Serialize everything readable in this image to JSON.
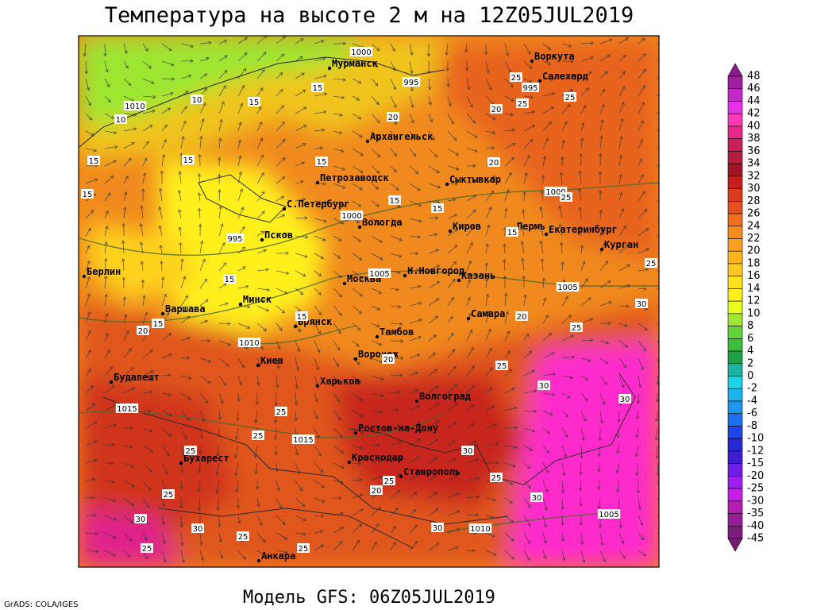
{
  "header": {
    "title": "Температура на высоте 2 м на 12Z05JUL2019"
  },
  "map": {
    "cities": [
      "Мурманск",
      "Воркута",
      "Салехард",
      "Архангельск",
      "Сыктывкар",
      "Петрозаводск",
      "С.Петербург",
      "Вологда",
      "Киров",
      "Пермь",
      "Екатеринбург",
      "Курган",
      "Псков",
      "Берлин",
      "Москва",
      "Н.Новгород",
      "Казань",
      "Варшава",
      "Минск",
      "Брянск",
      "Самара",
      "Тамбов",
      "Киев",
      "Воронеж",
      "Будапешт",
      "Харьков",
      "Волгоград",
      "Ростов-на-Дону",
      "Бухарест",
      "Краснодар",
      "Ставрополь",
      "Анкара"
    ],
    "contour_labels": [
      1000,
      995,
      995,
      1010,
      10,
      10,
      15,
      15,
      20,
      20,
      25,
      25,
      25,
      15,
      15,
      15,
      20,
      1000,
      25,
      15,
      15,
      15,
      1000,
      995,
      15,
      25,
      1005,
      1005,
      15,
      30,
      20,
      15,
      15,
      20,
      25,
      1010,
      20,
      25,
      30,
      30,
      1015,
      25,
      25,
      1015,
      30,
      25,
      25,
      20,
      25,
      25,
      30,
      1005,
      1010,
      30,
      30,
      25,
      30,
      25,
      25
    ]
  },
  "colorbar": {
    "levels": [
      48,
      46,
      44,
      42,
      40,
      38,
      36,
      34,
      32,
      30,
      28,
      26,
      24,
      22,
      20,
      18,
      16,
      14,
      12,
      10,
      8,
      6,
      4,
      2,
      0,
      -2,
      -4,
      -6,
      -8,
      -10,
      -12,
      -15,
      -20,
      -25,
      -30,
      -35,
      -40,
      -45
    ],
    "colors": [
      "#a01ea0",
      "#c828c8",
      "#e632e6",
      "#ff3cb4",
      "#e6288c",
      "#c81e5a",
      "#b41e3c",
      "#a01428",
      "#c81e1e",
      "#dc3c1e",
      "#e6501e",
      "#f06e1e",
      "#f58c1e",
      "#faa01e",
      "#ffb41e",
      "#ffc81e",
      "#ffe11e",
      "#fff01e",
      "#e6ff1e",
      "#a0e632",
      "#64d23c",
      "#3cbe3c",
      "#1ea046",
      "#1eb4a0",
      "#1ed2e6",
      "#1eb4f0",
      "#1e96f0",
      "#1e6ef0",
      "#1e46e6",
      "#2828d2",
      "#3c1ed2",
      "#6e1ee6",
      "#a01ef0",
      "#c81ee6",
      "#b41eb4",
      "#961e96",
      "#7d1e7d"
    ],
    "top_color": "#8c1a8c",
    "bottom_color": "#781a78"
  },
  "footer": {
    "model": "Модель GFS: 06Z05JUL2019",
    "credit": "GrADS: COLA/IGES"
  }
}
